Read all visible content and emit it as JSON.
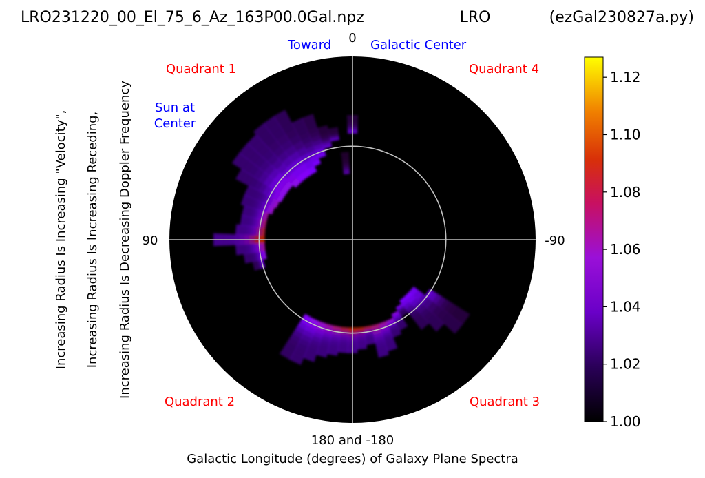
{
  "header": {
    "file_name": "LRO231220_00_El_75_6_Az_163P00.0Gal.npz",
    "station": "LRO",
    "program": "(ezGal230827a.py)"
  },
  "labels": {
    "toward": "Toward",
    "galactic_center": "Galactic Center",
    "sun_line1": "Sun at",
    "sun_line2": "Center",
    "quadrant1": "Quadrant 1",
    "quadrant2": "Quadrant 2",
    "quadrant3": "Quadrant 3",
    "quadrant4": "Quadrant 4",
    "ylabel_line1": "Increasing Radius Is Increasing \"Velocity\",",
    "ylabel_line2": "Increasing Radius Is Increasing Receding,",
    "ylabel_line3": "Increasing Radius Is Decreasing Doppler Frequency",
    "xlabel_line1": "180 and -180",
    "xlabel_line2": "Galactic Longitude (degrees) of Galaxy Plane Spectra"
  },
  "colors": {
    "quadrant_label": "#ff0000",
    "annotation": "#0000ff",
    "plot_background": "#000000",
    "guide_lines": "#c0c0c0"
  },
  "chart_data": {
    "type": "heatmap",
    "projection": "polar",
    "angle_axis": {
      "zero_direction": "top",
      "positive_direction": "counterclockwise",
      "ticks": [
        {
          "deg": 0,
          "label": "0"
        },
        {
          "deg": 90,
          "label": "90"
        },
        {
          "deg": -90,
          "label": "-90"
        }
      ]
    },
    "reference_circle_radius_fraction": 0.51,
    "colorbar": {
      "min": 1.0,
      "max": 1.127,
      "ticks": [
        1.0,
        1.02,
        1.04,
        1.06,
        1.08,
        1.1,
        1.12
      ],
      "tick_labels": [
        "1.00",
        "1.02",
        "1.04",
        "1.06",
        "1.08",
        "1.10",
        "1.12"
      ],
      "colormap": "gnuplot"
    },
    "spectra": [
      {
        "lon": 0,
        "r0": 0.58,
        "r1": 0.68,
        "value": 1.02
      },
      {
        "lon": 5,
        "r0": 0.36,
        "r1": 0.48,
        "value": 1.015
      },
      {
        "lon": 10,
        "r0": 0.55,
        "r1": 0.62,
        "value": 1.02
      },
      {
        "lon": 15,
        "r0": 0.52,
        "r1": 0.64,
        "value": 1.02
      },
      {
        "lon": 20,
        "r0": 0.48,
        "r1": 0.72,
        "value": 1.025
      },
      {
        "lon": 25,
        "r0": 0.45,
        "r1": 0.72,
        "value": 1.03
      },
      {
        "lon": 30,
        "r0": 0.42,
        "r1": 0.8,
        "value": 1.03
      },
      {
        "lon": 35,
        "r0": 0.42,
        "r1": 0.8,
        "value": 1.035
      },
      {
        "lon": 40,
        "r0": 0.42,
        "r1": 0.8,
        "value": 1.035
      },
      {
        "lon": 45,
        "r0": 0.42,
        "r1": 0.78,
        "value": 1.04
      },
      {
        "lon": 50,
        "r0": 0.44,
        "r1": 0.78,
        "value": 1.04
      },
      {
        "lon": 55,
        "r0": 0.44,
        "r1": 0.78,
        "value": 1.04
      },
      {
        "lon": 60,
        "r0": 0.44,
        "r1": 0.72,
        "value": 1.04
      },
      {
        "lon": 65,
        "r0": 0.45,
        "r1": 0.64,
        "value": 1.045
      },
      {
        "lon": 70,
        "r0": 0.46,
        "r1": 0.64,
        "value": 1.045
      },
      {
        "lon": 75,
        "r0": 0.48,
        "r1": 0.62,
        "value": 1.05
      },
      {
        "lon": 80,
        "r0": 0.48,
        "r1": 0.62,
        "value": 1.055
      },
      {
        "lon": 85,
        "r0": 0.48,
        "r1": 0.64,
        "value": 1.06
      },
      {
        "lon": 90,
        "r0": 0.48,
        "r1": 0.76,
        "value": 1.065
      },
      {
        "lon": 95,
        "r0": 0.48,
        "r1": 0.64,
        "value": 1.05
      },
      {
        "lon": 100,
        "r0": 0.48,
        "r1": 0.6,
        "value": 1.04
      },
      {
        "lon": 105,
        "r0": 0.5,
        "r1": 0.56,
        "value": 1.03
      },
      {
        "lon": 150,
        "r0": 0.48,
        "r1": 0.74,
        "value": 1.035
      },
      {
        "lon": 155,
        "r0": 0.48,
        "r1": 0.74,
        "value": 1.04
      },
      {
        "lon": 160,
        "r0": 0.48,
        "r1": 0.7,
        "value": 1.045
      },
      {
        "lon": 165,
        "r0": 0.48,
        "r1": 0.66,
        "value": 1.05
      },
      {
        "lon": 170,
        "r0": 0.48,
        "r1": 0.64,
        "value": 1.055
      },
      {
        "lon": 175,
        "r0": 0.48,
        "r1": 0.62,
        "value": 1.06
      },
      {
        "lon": 180,
        "r0": 0.48,
        "r1": 0.62,
        "value": 1.065
      },
      {
        "lon": -175,
        "r0": 0.48,
        "r1": 0.6,
        "value": 1.065
      },
      {
        "lon": -170,
        "r0": 0.48,
        "r1": 0.58,
        "value": 1.06
      },
      {
        "lon": -165,
        "r0": 0.48,
        "r1": 0.66,
        "value": 1.055
      },
      {
        "lon": -160,
        "r0": 0.48,
        "r1": 0.64,
        "value": 1.05
      },
      {
        "lon": -155,
        "r0": 0.48,
        "r1": 0.58,
        "value": 1.045
      },
      {
        "lon": -150,
        "r0": 0.46,
        "r1": 0.56,
        "value": 1.04
      },
      {
        "lon": -145,
        "r0": 0.44,
        "r1": 0.5,
        "value": 1.035
      },
      {
        "lon": -140,
        "r0": 0.42,
        "r1": 0.62,
        "value": 1.03
      },
      {
        "lon": -135,
        "r0": 0.42,
        "r1": 0.68,
        "value": 1.03
      },
      {
        "lon": -130,
        "r0": 0.42,
        "r1": 0.76,
        "value": 1.025
      },
      {
        "lon": -125,
        "r0": 0.5,
        "r1": 0.76,
        "value": 1.02
      }
    ]
  }
}
